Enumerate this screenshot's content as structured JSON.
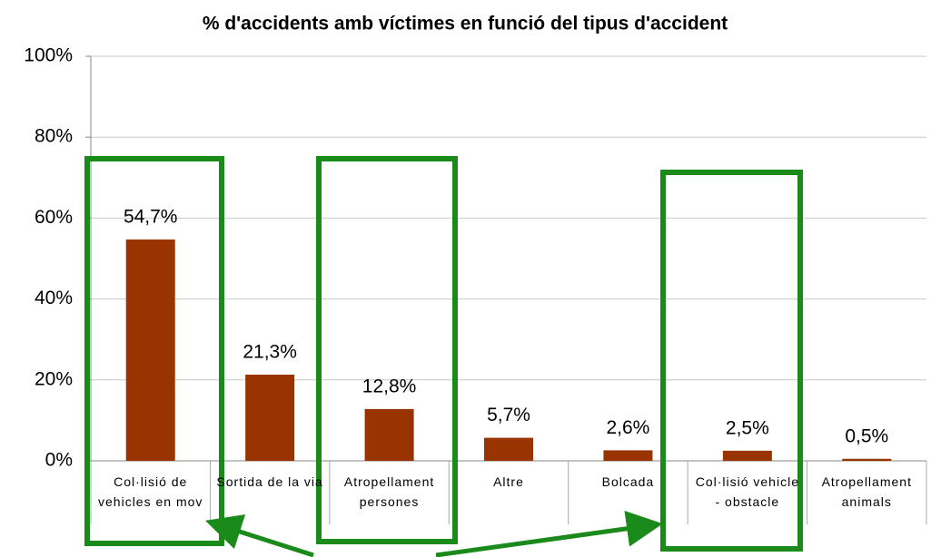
{
  "chart_data": {
    "type": "bar",
    "title": "% d'accidents amb víctimes en funció del tipus d'accident",
    "categories": [
      "Col·lisió de vehicles en mov",
      "Sortida de la via",
      "Atropellament persones",
      "Altre",
      "Bolcada",
      "Col·lisió vehicle - obstacle",
      "Atropellament animals"
    ],
    "values": [
      54.7,
      21.3,
      12.8,
      5.7,
      2.6,
      2.5,
      0.5
    ],
    "value_labels": [
      "54,7%",
      "21,3%",
      "12,8%",
      "5,7%",
      "2,6%",
      "2,5%",
      "0,5%"
    ],
    "color": "#993300",
    "ylim": [
      0,
      100
    ],
    "yticks": [
      {
        "value": 0,
        "label": "0%"
      },
      {
        "value": 20,
        "label": "20%"
      },
      {
        "value": 40,
        "label": "40%"
      },
      {
        "value": 60,
        "label": "60%"
      },
      {
        "value": 80,
        "label": "80%"
      },
      {
        "value": 100,
        "label": "100%"
      }
    ],
    "grid": true
  }
}
